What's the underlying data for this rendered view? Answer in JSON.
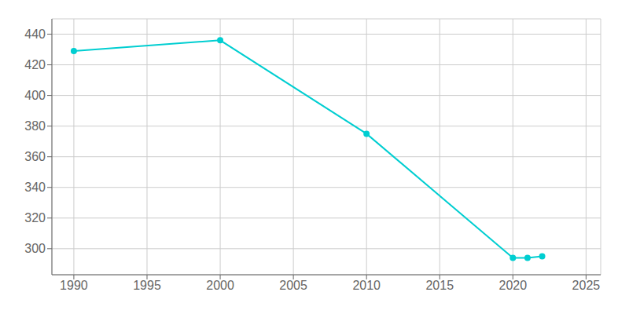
{
  "chart_data": {
    "type": "line",
    "x": [
      1990,
      2000,
      2010,
      2020,
      2021,
      2022
    ],
    "values": [
      429,
      436,
      375,
      294,
      294,
      295
    ],
    "color": "#00CED1",
    "marker": "circle",
    "xlim": [
      1988.5,
      2026
    ],
    "ylim": [
      283,
      450
    ],
    "xticks": [
      1990,
      1995,
      2000,
      2005,
      2010,
      2015,
      2020,
      2025
    ],
    "yticks": [
      300,
      320,
      340,
      360,
      380,
      400,
      420,
      440
    ],
    "grid": true
  }
}
